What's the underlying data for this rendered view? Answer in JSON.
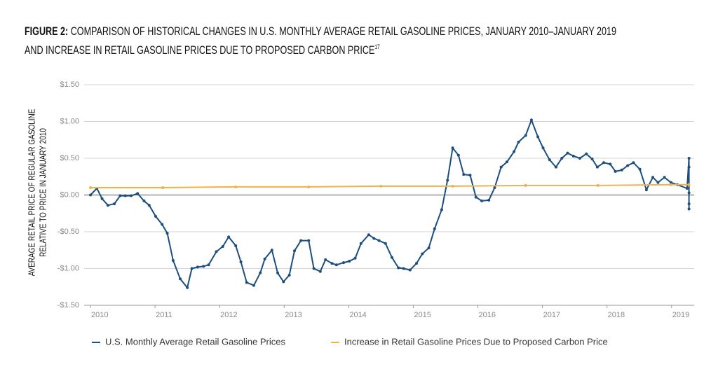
{
  "chart_data": {
    "type": "line",
    "figure_label": "FIGURE 2:",
    "title_lines": [
      "COMPARISON OF HISTORICAL CHANGES IN U.S. MONTHLY AVERAGE RETAIL GASOLINE PRICES, JANUARY 2010–JANUARY 2019",
      "AND INCREASE IN RETAIL GASOLINE PRICES DUE TO PROPOSED CARBON PRICE"
    ],
    "title_note": "17",
    "y_label_lines": [
      "AVERAGE RETAIL PRICE OF REGULAR GASOLINE",
      "RELATIVE TO PRICE IN JANUARY 2010"
    ],
    "xlim": [
      2010,
      2019.35
    ],
    "xticks": [
      2010,
      2011,
      2012,
      2013,
      2014,
      2015,
      2016,
      2017,
      2018,
      2019
    ],
    "ylim": [
      -1.5,
      1.5
    ],
    "yticks": [
      {
        "value": 1.5,
        "label": "$1.50"
      },
      {
        "value": 1.0,
        "label": "$1.00"
      },
      {
        "value": 0.5,
        "label": "$0.50"
      },
      {
        "value": 0,
        "label": "$0.00"
      },
      {
        "value": -0.5,
        "label": "-$0.50"
      },
      {
        "value": -1.0,
        "label": "-$1.00"
      },
      {
        "value": -1.5,
        "label": "-$1.50"
      }
    ],
    "grid": true,
    "series": [
      {
        "name": "U.S. Monthly Average Retail Gasoline Prices",
        "color": "#1d4f7e",
        "x": [
          2010.0,
          2010.1,
          2010.18,
          2010.27,
          2010.37,
          2010.46,
          2010.54,
          2010.63,
          2010.73,
          2010.83,
          2010.91,
          2011.01,
          2011.11,
          2011.19,
          2011.28,
          2011.39,
          2011.5,
          2011.57,
          2011.66,
          2011.75,
          2011.83,
          2011.95,
          2012.05,
          2012.14,
          2012.25,
          2012.33,
          2012.42,
          2012.53,
          2012.63,
          2012.7,
          2012.81,
          2012.9,
          2012.99,
          2013.08,
          2013.16,
          2013.26,
          2013.38,
          2013.46,
          2013.56,
          2013.64,
          2013.74,
          2013.81,
          2013.92,
          2014.01,
          2014.1,
          2014.19,
          2014.31,
          2014.39,
          2014.47,
          2014.57,
          2014.67,
          2014.77,
          2014.85,
          2014.95,
          2015.05,
          2015.14,
          2015.24,
          2015.33,
          2015.44,
          2015.53,
          2015.61,
          2015.7,
          2015.78,
          2015.88,
          2015.97,
          2016.06,
          2016.17,
          2016.26,
          2016.36,
          2016.45,
          2016.56,
          2016.63,
          2016.74,
          2016.83,
          2016.93,
          2017.01,
          2017.11,
          2017.21,
          2017.3,
          2017.39,
          2017.48,
          2017.58,
          2017.68,
          2017.77,
          2017.85,
          2017.95,
          2018.05,
          2018.13,
          2018.23,
          2018.32,
          2018.41,
          2018.51,
          2018.61,
          2018.71,
          2018.79,
          2018.89,
          2018.99,
          2019.09,
          2019.24,
          2019.27,
          2019.27,
          2019.27,
          2019.27,
          2019.27
        ],
        "values": [
          0.0,
          0.09,
          -0.05,
          -0.14,
          -0.12,
          -0.01,
          -0.01,
          -0.01,
          0.02,
          -0.08,
          -0.14,
          -0.29,
          -0.4,
          -0.52,
          -0.89,
          -1.14,
          -1.26,
          -1.0,
          -0.98,
          -0.97,
          -0.95,
          -0.77,
          -0.7,
          -0.57,
          -0.69,
          -0.91,
          -1.19,
          -1.23,
          -1.06,
          -0.87,
          -0.75,
          -1.06,
          -1.18,
          -1.09,
          -0.76,
          -0.62,
          -0.62,
          -1.0,
          -1.04,
          -0.88,
          -0.93,
          -0.95,
          -0.92,
          -0.9,
          -0.86,
          -0.66,
          -0.54,
          -0.59,
          -0.62,
          -0.66,
          -0.85,
          -0.99,
          -1.0,
          -1.02,
          -0.93,
          -0.8,
          -0.72,
          -0.46,
          -0.2,
          0.2,
          0.64,
          0.54,
          0.28,
          0.27,
          -0.03,
          -0.08,
          -0.07,
          0.1,
          0.38,
          0.45,
          0.59,
          0.72,
          0.81,
          1.02,
          0.79,
          0.64,
          0.48,
          0.38,
          0.5,
          0.57,
          0.53,
          0.5,
          0.56,
          0.49,
          0.38,
          0.44,
          0.42,
          0.32,
          0.34,
          0.4,
          0.44,
          0.35,
          0.07,
          0.24,
          0.17,
          0.24,
          0.17,
          0.14,
          0.09,
          0.5,
          0.38,
          0.03,
          -0.12,
          -0.19
        ]
      },
      {
        "name": "Increase in Retail Gasoline Prices Due to Proposed Carbon Price",
        "color": "#f0b24a",
        "x": [
          2010.0,
          2011.12,
          2012.25,
          2013.38,
          2014.5,
          2015.61,
          2016.74,
          2017.86,
          2018.99,
          2019.27
        ],
        "values": [
          0.1,
          0.1,
          0.11,
          0.11,
          0.12,
          0.12,
          0.13,
          0.13,
          0.14,
          0.14
        ]
      }
    ]
  }
}
